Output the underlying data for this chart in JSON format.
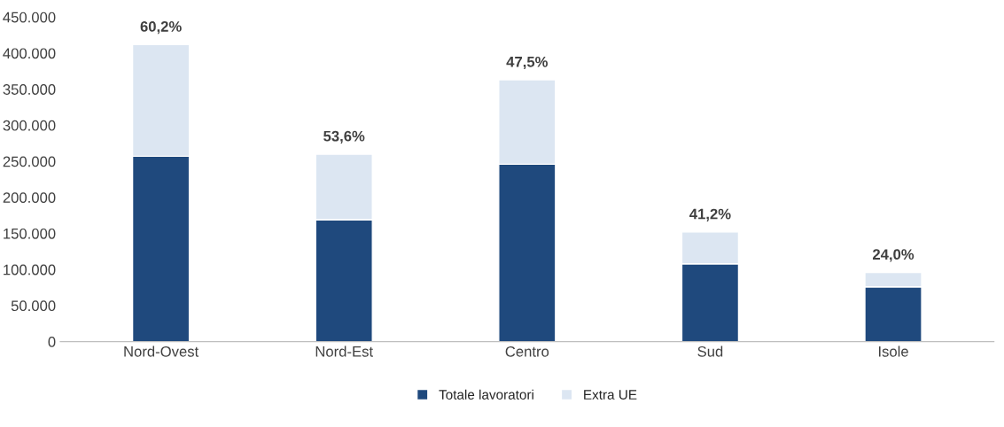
{
  "chart_data": {
    "type": "bar",
    "stacked": true,
    "categories": [
      "Nord-Ovest",
      "Nord-Est",
      "Centro",
      "Sud",
      "Isole"
    ],
    "series": [
      {
        "name": "Totale lavoratori",
        "color": "#1f497d",
        "values": [
          257000,
          169000,
          246000,
          108000,
          76000
        ]
      },
      {
        "name": "Extra UE",
        "color": "#dce6f2",
        "values": [
          155000,
          91000,
          117000,
          44000,
          20000
        ]
      }
    ],
    "ylim": [
      0,
      450000
    ],
    "yticks": [
      0,
      {
        "value": 50000,
        "label": "50.000"
      },
      {
        "value": 100000,
        "label": "100.000"
      },
      {
        "value": 150000,
        "label": "150.000"
      },
      {
        "value": 200000,
        "label": "200.000"
      },
      {
        "value": 250000,
        "label": "250.000"
      },
      {
        "value": 300000,
        "label": "300.000"
      },
      {
        "value": 350000,
        "label": "350.000"
      },
      {
        "value": 400000,
        "label": "400.000"
      },
      {
        "value": 450000,
        "label": "450.000"
      }
    ],
    "annotations": [
      {
        "text": "60,2%",
        "x": "Nord-Ovest",
        "y": 412000
      },
      {
        "text": "53,6%",
        "x": "Nord-Est",
        "y": 260000
      },
      {
        "text": "47,5%",
        "x": "Centro",
        "y": 363000
      },
      {
        "text": "41,2%",
        "x": "Sud",
        "y": 152000
      },
      {
        "text": "24,0%",
        "x": "Isole",
        "y": 96000
      }
    ],
    "grid": false,
    "legend": "bottom"
  }
}
